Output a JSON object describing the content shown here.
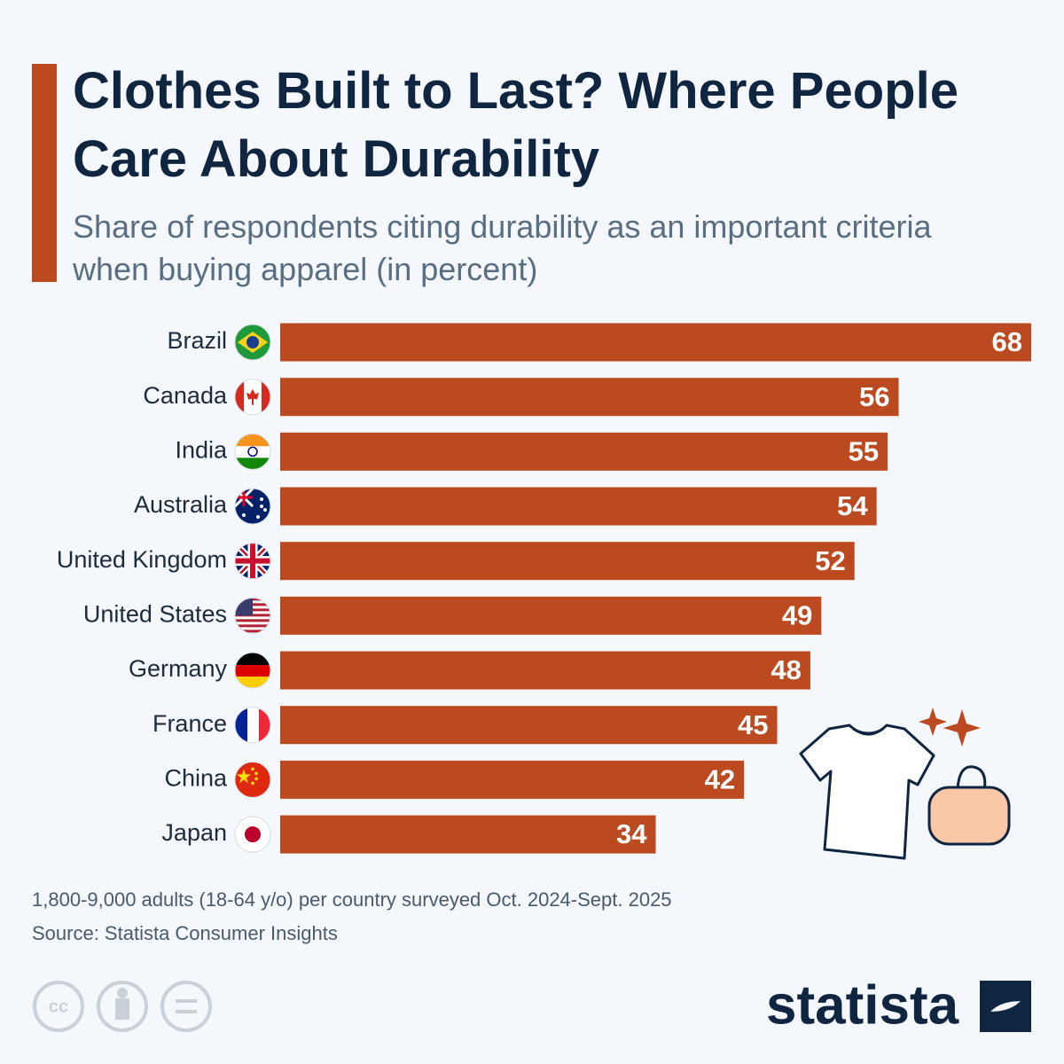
{
  "chart_data": {
    "type": "bar",
    "orientation": "horizontal",
    "title": "Clothes Built to Last? Where People Care About Durability",
    "subtitle": "Share of respondents citing durability as an important criteria when buying apparel (in percent)",
    "categories": [
      "Brazil",
      "Canada",
      "India",
      "Australia",
      "United Kingdom",
      "United States",
      "Germany",
      "France",
      "China",
      "Japan"
    ],
    "values": [
      68,
      56,
      55,
      54,
      52,
      49,
      48,
      45,
      42,
      34
    ],
    "color": "#bb4a21",
    "note": "1,800-9,000 adults (18-64 y/o) per country surveyed Oct. 2024-Sept. 2025",
    "source": "Source: Statista Consumer Insights",
    "logo": "statista"
  }
}
